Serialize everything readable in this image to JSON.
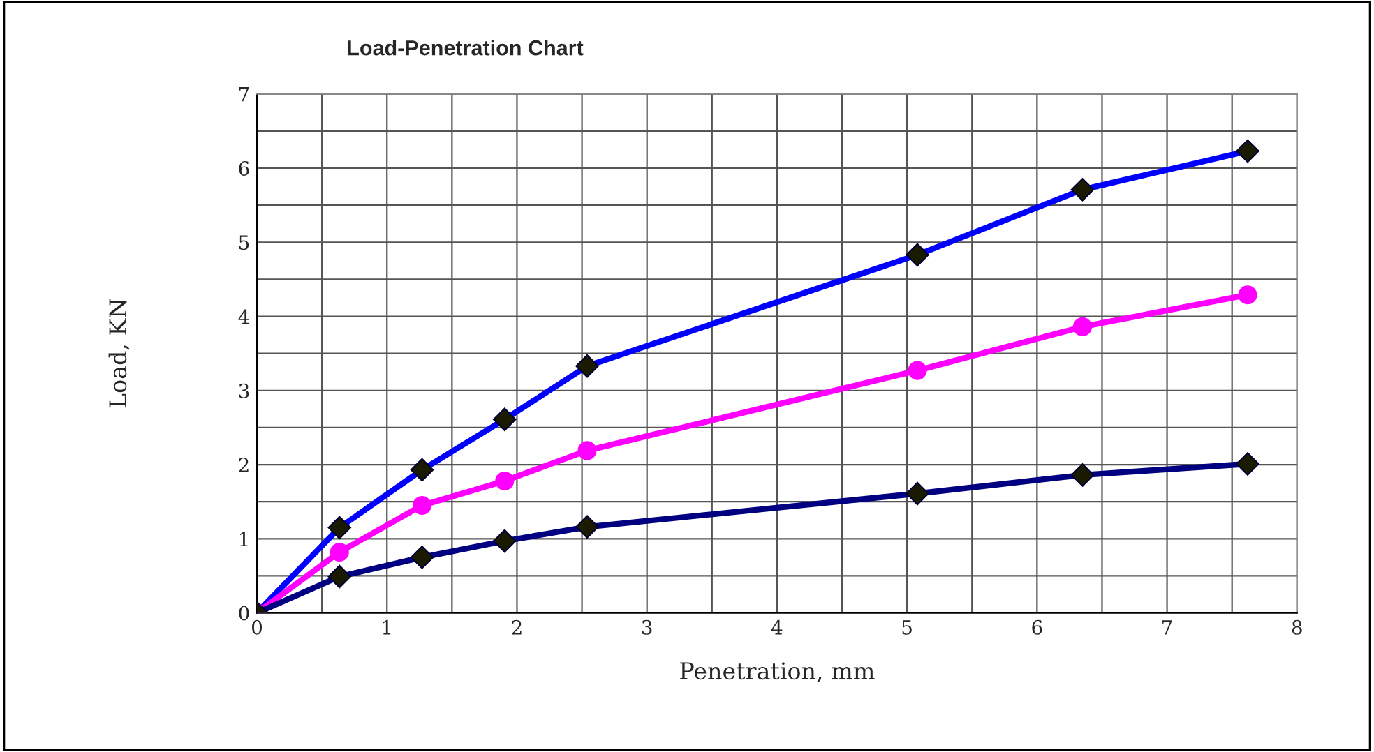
{
  "chart_data": {
    "type": "line",
    "title": "Load-Penetration Chart",
    "xlabel": "Penetration, mm",
    "ylabel": "Load, KN",
    "x": [
      0,
      0.635,
      1.27,
      1.905,
      2.54,
      5.08,
      6.35,
      7.62
    ],
    "series": [
      {
        "color": "#0000ff",
        "marker": "diamond",
        "values": [
          0,
          1.15,
          1.93,
          2.61,
          3.33,
          4.83,
          5.71,
          6.23
        ]
      },
      {
        "color": "#ff00ff",
        "marker": "circle",
        "values": [
          0,
          0.82,
          1.45,
          1.78,
          2.19,
          3.27,
          3.86,
          4.29
        ]
      },
      {
        "color": "#000080",
        "marker": "diamond",
        "values": [
          0,
          0.49,
          0.75,
          0.97,
          1.16,
          1.61,
          1.86,
          2.01
        ]
      }
    ],
    "xlim": [
      0,
      8
    ],
    "ylim": [
      0,
      7
    ],
    "xticks": [
      0,
      {
        "value": 0.5,
        "label": null
      },
      1,
      {
        "value": 1.5,
        "label": null
      },
      2,
      {
        "value": 2.5,
        "label": null
      },
      3,
      {
        "value": 3.5,
        "label": null
      },
      4,
      {
        "value": 4.5,
        "label": null
      },
      5,
      {
        "value": 5.5,
        "label": null
      },
      6,
      {
        "value": 6.5,
        "label": null
      },
      7,
      {
        "value": 7.5,
        "label": null
      },
      8
    ],
    "yticks": [
      0,
      {
        "value": 0.5,
        "label": null
      },
      1,
      {
        "value": 1.5,
        "label": null
      },
      2,
      {
        "value": 2.5,
        "label": null
      },
      3,
      {
        "value": 3.5,
        "label": null
      },
      4,
      {
        "value": 4.5,
        "label": null
      },
      5,
      {
        "value": 5.5,
        "label": null
      },
      6,
      {
        "value": 6.5,
        "label": null
      },
      7
    ],
    "grid": true,
    "legend": false
  }
}
